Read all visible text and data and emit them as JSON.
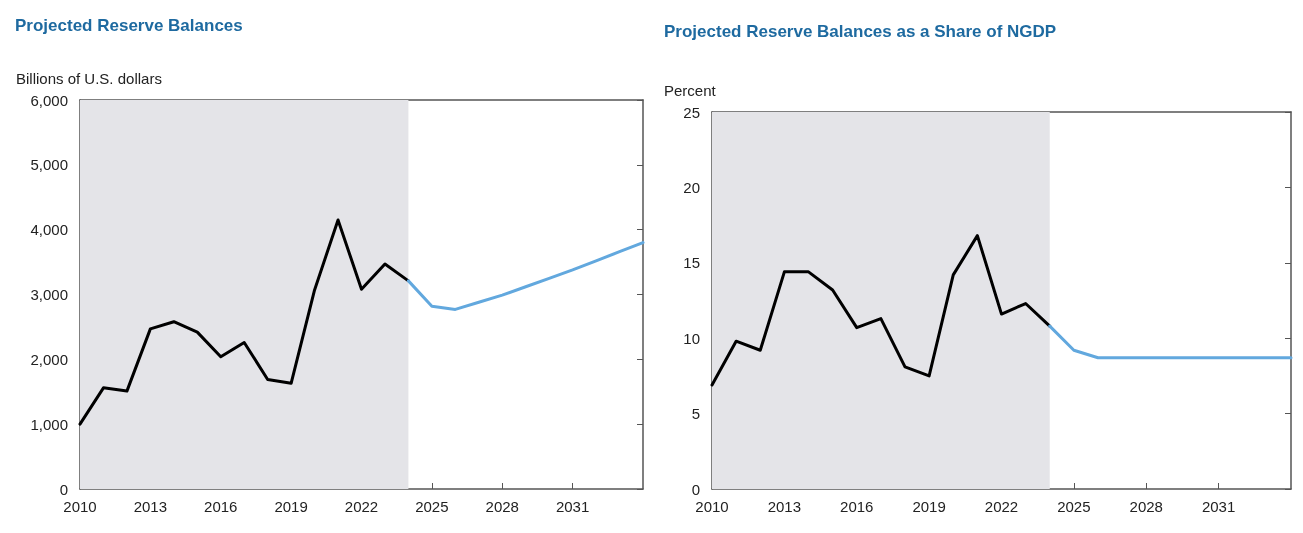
{
  "chart_data": [
    {
      "type": "line",
      "title": "Projected Reserve Balances",
      "ylabel": "Billions of U.S. dollars",
      "xlim": [
        2010,
        2034
      ],
      "xticks": [
        2010,
        2013,
        2016,
        2019,
        2022,
        2025,
        2028,
        2031
      ],
      "ylim": [
        0,
        6000
      ],
      "yticks": [
        {
          "value": 0,
          "label": "0"
        },
        {
          "value": 1000,
          "label": "1,000"
        },
        {
          "value": 2000,
          "label": "2,000"
        },
        {
          "value": 3000,
          "label": "3,000"
        },
        {
          "value": 4000,
          "label": "4,000"
        },
        {
          "value": 5000,
          "label": "5,000"
        },
        {
          "value": 6000,
          "label": "6,000"
        }
      ],
      "grid": false,
      "marker": "none",
      "line_style": "solid",
      "bands": [
        {
          "axis": "x",
          "from": 2010,
          "to": 2024,
          "color": "#e4e4e8"
        }
      ],
      "series": [
        {
          "color": "#000000",
          "x": [
            2010,
            2011,
            2012,
            2013,
            2014,
            2015,
            2016,
            2017,
            2018,
            2019,
            2020,
            2021,
            2022,
            2023,
            2024
          ],
          "values": [
            1000,
            1560,
            1510,
            2470,
            2580,
            2420,
            2040,
            2260,
            1690,
            1630,
            3070,
            4150,
            3080,
            3470,
            3210
          ]
        },
        {
          "color": "#62a8de",
          "x": [
            2024,
            2025,
            2026,
            2027,
            2028,
            2029,
            2030,
            2031,
            2032,
            2033,
            2034
          ],
          "values": [
            3210,
            2820,
            2770,
            2880,
            2990,
            3120,
            3250,
            3380,
            3520,
            3660,
            3800
          ]
        }
      ]
    },
    {
      "type": "line",
      "title": "Projected Reserve Balances as a Share of NGDP",
      "ylabel": "Percent",
      "xlim": [
        2010,
        2034
      ],
      "xticks": [
        2010,
        2013,
        2016,
        2019,
        2022,
        2025,
        2028,
        2031
      ],
      "ylim": [
        0,
        25
      ],
      "yticks": [
        0,
        5,
        10,
        15,
        20,
        25
      ],
      "grid": false,
      "marker": "none",
      "line_style": "solid",
      "bands": [
        {
          "axis": "x",
          "from": 2010,
          "to": 2024,
          "color": "#e4e4e8"
        }
      ],
      "series": [
        {
          "color": "#000000",
          "x": [
            2010,
            2011,
            2012,
            2013,
            2014,
            2015,
            2016,
            2017,
            2018,
            2019,
            2020,
            2021,
            2022,
            2023,
            2024
          ],
          "values": [
            6.9,
            9.8,
            9.2,
            14.4,
            14.4,
            13.2,
            10.7,
            11.3,
            8.1,
            7.5,
            14.2,
            16.8,
            11.6,
            12.3,
            10.8
          ]
        },
        {
          "color": "#62a8de",
          "x": [
            2024,
            2025,
            2026,
            2027,
            2028,
            2029,
            2030,
            2031,
            2032,
            2033,
            2034
          ],
          "values": [
            10.8,
            9.2,
            8.7,
            8.7,
            8.7,
            8.7,
            8.7,
            8.7,
            8.7,
            8.7,
            8.7
          ]
        }
      ]
    }
  ]
}
